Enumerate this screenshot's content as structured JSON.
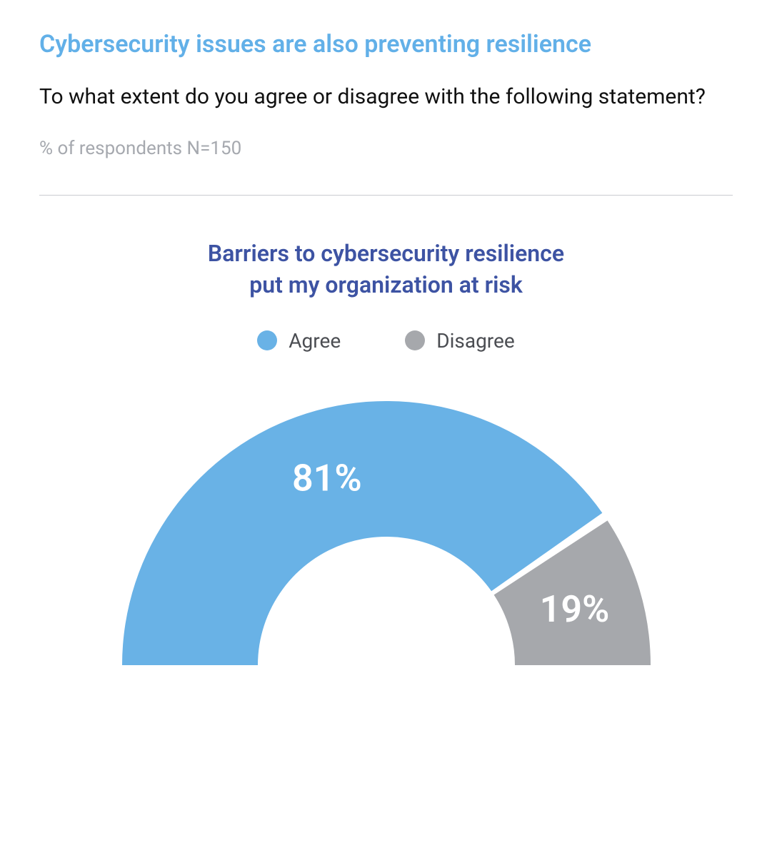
{
  "header": {
    "title": "Cybersecurity issues are also preventing resilience",
    "title_color": "#62b0e8",
    "question": "To what extent do you agree or disagree with the following statement?",
    "question_color": "#111111",
    "meta": "% of respondents  N=150",
    "meta_color": "#a6a9af",
    "divider_color": "#c9cbd0"
  },
  "chart": {
    "type": "semi-donut",
    "title_line1": "Barriers to cybersecurity resilience",
    "title_line2": "put my organization at risk",
    "title_color": "#3d53a3",
    "background_color": "#ffffff",
    "gap_color": "#ffffff",
    "outer_radius": 370,
    "inner_radius": 180,
    "gap_degrees": 2,
    "legend_label_color": "#4b4d52",
    "value_label_color": "#ffffff",
    "value_label_fontsize": 52,
    "series": [
      {
        "label": "Agree",
        "value": 81,
        "display": "81%",
        "color": "#69b2e6"
      },
      {
        "label": "Disagree",
        "value": 19,
        "display": "19%",
        "color": "#a6a8ac"
      }
    ]
  }
}
